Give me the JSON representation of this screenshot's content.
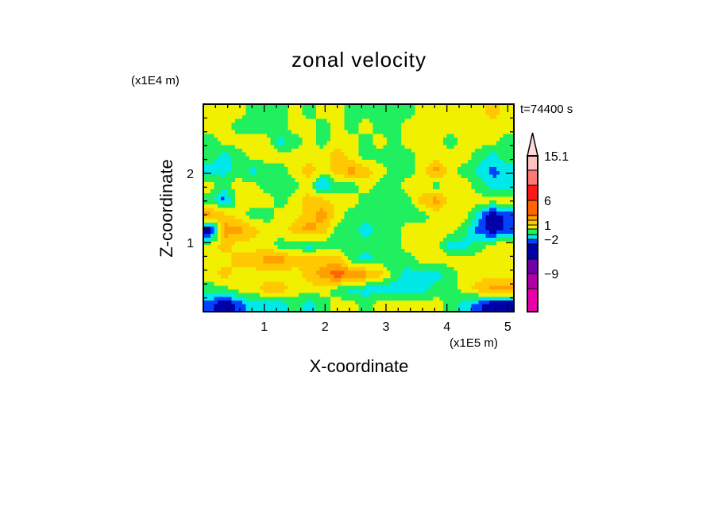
{
  "chart_data": {
    "type": "heatmap",
    "title": "zonal velocity",
    "xlabel": "X-coordinate",
    "ylabel": "Z-coordinate",
    "x_unit": "(x1E5 m)",
    "y_unit": "(x1E4 m)",
    "time_label": "t=74400 s",
    "xlim": [
      0,
      5.1
    ],
    "ylim": [
      0,
      3.0
    ],
    "x_ticks": [
      1,
      2,
      3,
      4,
      5
    ],
    "x_tick_labels": [
      "1",
      "2",
      "3",
      "4",
      "5"
    ],
    "y_ticks": [
      1,
      2
    ],
    "y_tick_labels": [
      "1",
      "2"
    ],
    "colorbar": {
      "labels": [
        {
          "value": 15.1,
          "text": "15.1"
        },
        {
          "value": 6,
          "text": "6"
        },
        {
          "value": 1,
          "text": "1"
        },
        {
          "value": -2,
          "text": "-2"
        },
        {
          "value": -9,
          "text": "-9"
        }
      ],
      "bands": [
        {
          "min": 15.1,
          "max": null,
          "color": "#ffd8d8",
          "shape": "triangle"
        },
        {
          "min": 12,
          "max": 15.1,
          "color": "#ffc0c0"
        },
        {
          "min": 9,
          "max": 12,
          "color": "#ff7878"
        },
        {
          "min": 6,
          "max": 9,
          "color": "#ff1818"
        },
        {
          "min": 3,
          "max": 6,
          "color": "#ff6400"
        },
        {
          "min": 2,
          "max": 3,
          "color": "#ffa000"
        },
        {
          "min": 1,
          "max": 2,
          "color": "#ffc800"
        },
        {
          "min": 0,
          "max": 1,
          "color": "#f0f000"
        },
        {
          "min": -1,
          "max": 0,
          "color": "#20f060"
        },
        {
          "min": -2,
          "max": -1,
          "color": "#00e8e8"
        },
        {
          "min": -3,
          "max": -2,
          "color": "#0040ff"
        },
        {
          "min": -6,
          "max": -3,
          "color": "#0000a8"
        },
        {
          "min": -9,
          "max": -6,
          "color": "#7000a8"
        },
        {
          "min": -12,
          "max": -9,
          "color": "#b000a8"
        },
        {
          "min": null,
          "max": -12,
          "color": "#e800a8"
        }
      ]
    },
    "grid_note": "rows from top (z=3) to bottom (z=0), columns from x=0 to x=5.1; values in m/s (approximate)",
    "z": [
      [
        0.5,
        0.5,
        0.5,
        -0.5,
        -0.5,
        -0.5,
        0.5,
        -0.5,
        0.5,
        0.5,
        -0.5,
        -0.5,
        -0.5,
        -0.5,
        -0.5,
        0.5,
        0.5,
        0.5,
        0.5,
        0.5,
        1.5,
        0.5
      ],
      [
        0.5,
        0.5,
        -0.5,
        -0.5,
        -0.5,
        -0.5,
        0.5,
        0.5,
        -0.5,
        0.5,
        -0.5,
        0.5,
        -0.5,
        -0.5,
        0.5,
        0.5,
        0.5,
        0.5,
        0.5,
        0.5,
        0.5,
        0.5
      ],
      [
        -0.5,
        0.5,
        0.5,
        0.5,
        0.5,
        -1.5,
        -0.5,
        0.5,
        -0.5,
        0.5,
        0.5,
        -0.5,
        0.5,
        -0.5,
        0.5,
        0.5,
        0.5,
        -0.5,
        0.5,
        0.5,
        0.5,
        -0.5
      ],
      [
        -0.5,
        -1.5,
        -0.5,
        0.5,
        0.5,
        0.5,
        0.5,
        0.5,
        0.5,
        1.5,
        0.5,
        -0.5,
        -0.5,
        -0.5,
        -0.5,
        0.5,
        0.5,
        0.5,
        0.5,
        -0.5,
        -1.5,
        -0.5
      ],
      [
        -1.5,
        -1.5,
        -0.5,
        -1.5,
        -0.5,
        -0.5,
        0.5,
        1.5,
        0.5,
        1.5,
        2.5,
        1.5,
        0.5,
        -0.5,
        -0.5,
        0.5,
        2.5,
        0.5,
        -0.5,
        -1.5,
        -2.5,
        -1.5
      ],
      [
        0.5,
        -0.5,
        0.5,
        0.5,
        -0.5,
        -0.5,
        -0.5,
        0.5,
        -2.5,
        -0.5,
        -0.5,
        0.5,
        -0.5,
        -0.5,
        0.5,
        0.5,
        -0.5,
        0.5,
        0.5,
        -0.5,
        -1.5,
        -1.5
      ],
      [
        -0.5,
        -2.5,
        0.5,
        0.5,
        0.5,
        -0.5,
        0.5,
        1.5,
        1.5,
        0.5,
        0.5,
        -0.5,
        -0.5,
        -0.5,
        -0.5,
        1.5,
        2.5,
        0.5,
        0.5,
        0.5,
        0.5,
        0.5
      ],
      [
        2.5,
        1.5,
        0.5,
        -0.5,
        -0.5,
        0.5,
        0.5,
        1.5,
        2.5,
        0.5,
        -0.5,
        -0.5,
        -0.5,
        -0.5,
        -0.5,
        -0.5,
        0.5,
        0.5,
        0.5,
        -1.5,
        -4,
        -2.5
      ],
      [
        -4,
        2.5,
        2.5,
        1.5,
        0.5,
        0.5,
        1.5,
        2.5,
        1.5,
        -0.5,
        -0.5,
        -1.5,
        -0.5,
        -0.5,
        0.5,
        0.5,
        0.5,
        0.5,
        -0.5,
        -2.5,
        -4,
        -2.5
      ],
      [
        0.5,
        1.5,
        0.5,
        0.5,
        0.5,
        -0.5,
        -0.5,
        -1.5,
        -0.5,
        -0.5,
        -0.5,
        -0.5,
        -0.5,
        -0.5,
        0.5,
        0.5,
        0.5,
        -1.5,
        -1.5,
        -0.5,
        0.5,
        0.5
      ],
      [
        0.5,
        0.5,
        1.5,
        1.5,
        2.5,
        2.5,
        1.5,
        1.5,
        1.5,
        1.5,
        -0.5,
        -1.5,
        -0.5,
        -0.5,
        -0.5,
        0.5,
        0.5,
        0.5,
        0.5,
        0.5,
        0.5,
        0.5
      ],
      [
        0.5,
        1.5,
        0.5,
        0.5,
        0.5,
        0.5,
        0.5,
        1.5,
        2.5,
        4,
        2.5,
        2.5,
        1.5,
        -0.5,
        -1.5,
        -1.5,
        -1.5,
        -0.5,
        0.5,
        0.5,
        0.5,
        0.5
      ],
      [
        -0.5,
        -0.5,
        0.5,
        0.5,
        1.5,
        1.5,
        0.5,
        0.5,
        0.5,
        -0.5,
        -1.5,
        -1.5,
        -1.5,
        -1.5,
        -1.5,
        -1.5,
        -0.5,
        -0.5,
        0.5,
        1.5,
        2.5,
        2.5
      ],
      [
        -2.5,
        -4,
        -2.5,
        -1.5,
        -1.5,
        -1.5,
        -0.5,
        -1.5,
        -0.5,
        0.5,
        0.5,
        -0.5,
        0.5,
        0.5,
        0.5,
        0.5,
        0.5,
        -0.5,
        -1.5,
        -2.5,
        -4,
        -4
      ]
    ]
  }
}
